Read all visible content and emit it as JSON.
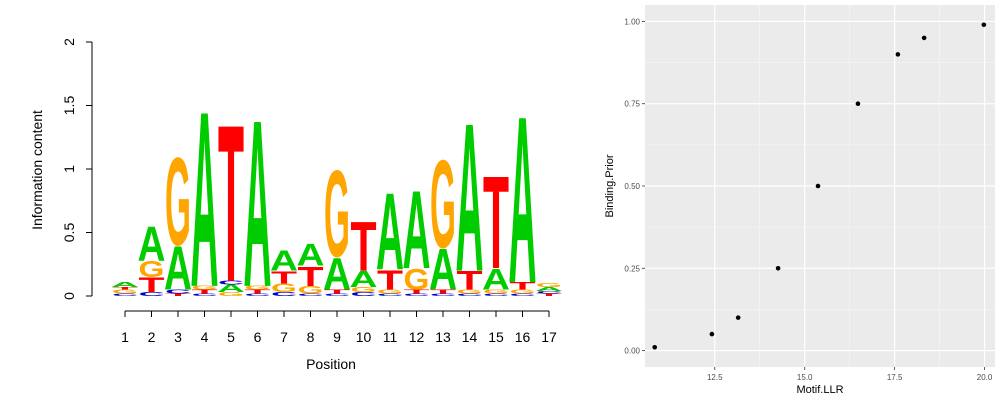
{
  "chart_data": [
    {
      "type": "sequence-logo",
      "xlabel": "Position",
      "ylabel": "Information content",
      "ylim": [
        0,
        2
      ],
      "yticks": [
        "0",
        "0.5",
        "1",
        "1.5",
        "2"
      ],
      "x": [
        "1",
        "2",
        "3",
        "4",
        "5",
        "6",
        "7",
        "8",
        "9",
        "10",
        "11",
        "12",
        "13",
        "14",
        "15",
        "16",
        "17"
      ],
      "colors": {
        "A": "#00cc00",
        "C": "#0000cc",
        "G": "#ffa500",
        "T": "#ff0000"
      },
      "positions": [
        {
          "stack": [
            [
              "C",
              0.02
            ],
            [
              "G",
              0.03
            ],
            [
              "T",
              0.02
            ],
            [
              "A",
              0.04
            ]
          ]
        },
        {
          "stack": [
            [
              "C",
              0.03
            ],
            [
              "T",
              0.12
            ],
            [
              "G",
              0.13
            ],
            [
              "A",
              0.28
            ]
          ]
        },
        {
          "stack": [
            [
              "T",
              0.02
            ],
            [
              "C",
              0.03
            ],
            [
              "A",
              0.35
            ],
            [
              "G",
              0.71
            ]
          ]
        },
        {
          "stack": [
            [
              "C",
              0.02
            ],
            [
              "T",
              0.03
            ],
            [
              "G",
              0.03
            ],
            [
              "A",
              1.42
            ]
          ]
        },
        {
          "stack": [
            [
              "G",
              0.03
            ],
            [
              "A",
              0.06
            ],
            [
              "C",
              0.03
            ],
            [
              "T",
              1.27
            ]
          ]
        },
        {
          "stack": [
            [
              "C",
              0.02
            ],
            [
              "T",
              0.03
            ],
            [
              "G",
              0.03
            ],
            [
              "A",
              1.35
            ]
          ]
        },
        {
          "stack": [
            [
              "C",
              0.03
            ],
            [
              "G",
              0.07
            ],
            [
              "T",
              0.1
            ],
            [
              "A",
              0.16
            ]
          ]
        },
        {
          "stack": [
            [
              "C",
              0.02
            ],
            [
              "G",
              0.06
            ],
            [
              "T",
              0.16
            ],
            [
              "A",
              0.18
            ]
          ]
        },
        {
          "stack": [
            [
              "C",
              0.02
            ],
            [
              "T",
              0.03
            ],
            [
              "A",
              0.26
            ],
            [
              "G",
              0.7
            ]
          ]
        },
        {
          "stack": [
            [
              "C",
              0.03
            ],
            [
              "G",
              0.04
            ],
            [
              "A",
              0.13
            ],
            [
              "T",
              0.4
            ]
          ]
        },
        {
          "stack": [
            [
              "C",
              0.02
            ],
            [
              "G",
              0.03
            ],
            [
              "T",
              0.16
            ],
            [
              "A",
              0.62
            ]
          ]
        },
        {
          "stack": [
            [
              "C",
              0.02
            ],
            [
              "T",
              0.03
            ],
            [
              "G",
              0.17
            ],
            [
              "A",
              0.63
            ]
          ]
        },
        {
          "stack": [
            [
              "C",
              0.02
            ],
            [
              "T",
              0.03
            ],
            [
              "A",
              0.33
            ],
            [
              "G",
              0.71
            ]
          ]
        },
        {
          "stack": [
            [
              "C",
              0.02
            ],
            [
              "G",
              0.03
            ],
            [
              "T",
              0.15
            ],
            [
              "A",
              1.2
            ]
          ]
        },
        {
          "stack": [
            [
              "C",
              0.02
            ],
            [
              "G",
              0.03
            ],
            [
              "A",
              0.17
            ],
            [
              "T",
              0.75
            ]
          ]
        },
        {
          "stack": [
            [
              "C",
              0.02
            ],
            [
              "G",
              0.03
            ],
            [
              "T",
              0.06
            ],
            [
              "A",
              1.35
            ]
          ]
        },
        {
          "stack": [
            [
              "T",
              0.02
            ],
            [
              "C",
              0.02
            ],
            [
              "A",
              0.03
            ],
            [
              "G",
              0.03
            ]
          ]
        }
      ]
    },
    {
      "type": "scatter",
      "xlabel": "Motif.LLR",
      "ylabel": "Binding.Prior",
      "xlim": [
        10.56,
        20.29
      ],
      "ylim": [
        -0.05,
        1.05
      ],
      "xticks": [
        12.5,
        15.0,
        17.5,
        20.0
      ],
      "xtick_labels": [
        "12.5",
        "15.0",
        "17.5",
        "20.0"
      ],
      "yticks": [
        0.0,
        0.25,
        0.5,
        0.75,
        1.0
      ],
      "ytick_labels": [
        "0.00",
        "0.25",
        "0.50",
        "0.75",
        "1.00"
      ],
      "grid": true,
      "panel_background": "#ebebeb",
      "point_color": "#000000",
      "x": [
        10.83,
        12.42,
        13.15,
        14.26,
        15.37,
        16.48,
        17.59,
        18.32,
        19.98
      ],
      "y": [
        0.01,
        0.05,
        0.1,
        0.25,
        0.5,
        0.75,
        0.9,
        0.95,
        0.99
      ]
    }
  ]
}
